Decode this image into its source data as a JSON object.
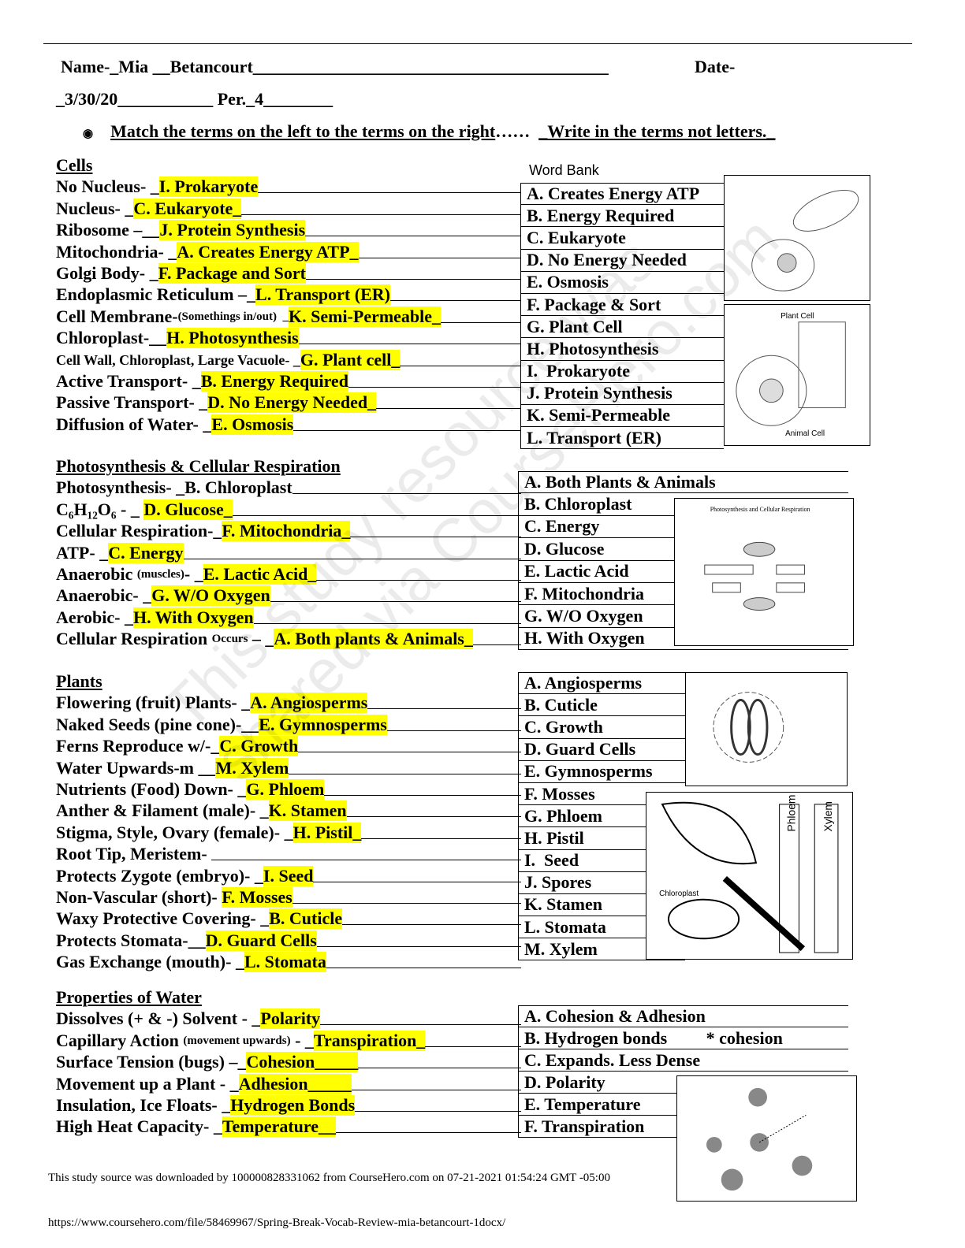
{
  "header": {
    "name": "Name-_Mia __Betancourt_________________________________________",
    "date_label": "Date-",
    "date": "_3/30/20___________ Per._4________"
  },
  "instructions": {
    "bullet": "◉",
    "part1": "Match the terms on the left to the terms on the right",
    "dots": "……  ",
    "part2": "_Write in the terms not letters._"
  },
  "sections": [
    {
      "title": "Cells ",
      "rows": [
        {
          "label": "No Nucleus- _",
          "answer": "I. Prokaryote"
        },
        {
          "label": "Nucleus- _",
          "answer": "C. Eukaryote_"
        },
        {
          "label": "Ribosome –__",
          "answer": "J. Protein Synthesis"
        },
        {
          "label": "Mitochondria- _",
          "answer": "A. Creates Energy ATP_"
        },
        {
          "label": "Golgi Body- _",
          "answer": "F. Package and Sort"
        },
        {
          "label": "Endoplasmic Reticulum –_",
          "answer": "L. Transport (ER)"
        },
        {
          "label": "Cell Membrane-",
          "small": "(Somethings in/out)  _",
          "answer": "K. Semi-Permeable_"
        },
        {
          "label": "Chloroplast-__",
          "answer": "H. Photosynthesis"
        },
        {
          "label": "",
          "small_large": "Cell Wall, Chloroplast, Large Vacuole- _",
          "answer": "G. Plant cell_"
        },
        {
          "label": "Active Transport- _",
          "answer": "B. Energy Required"
        },
        {
          "label": "Passive Transport- _",
          "answer": "D. No Energy Needed_"
        },
        {
          "label": "Diffusion of Water- _",
          "answer": "E. Osmosis"
        }
      ]
    },
    {
      "title": "Photosynthesis & Cellular Respiration",
      "rows": [
        {
          "label": "Photosynthesis- _B. Chloroplast",
          "answer": ""
        },
        {
          "label": "C₆H₁₂O₆ - _ ",
          "answer": "D. Glucose_"
        },
        {
          "label": "Cellular Respiration-_",
          "answer": "F. Mitochondria_"
        },
        {
          "label": "ATP- _",
          "answer": "C. Energy"
        },
        {
          "label": "Anaerobic ",
          "small": "(muscles)",
          "label2": "- _",
          "answer": "E. Lactic Acid_"
        },
        {
          "label": "Anaerobic- _",
          "answer": "G. W/O Oxygen"
        },
        {
          "label": "Aerobic- _",
          "answer": "H. With Oxygen"
        },
        {
          "label": "Cellular Respiration ",
          "small": "Occurs",
          "label2": " – _",
          "answer": "A. Both plants & Animals_"
        }
      ]
    },
    {
      "title": "Plants",
      "rows": [
        {
          "label": "Flowering (fruit) Plants- _",
          "answer": "A. Angiosperms"
        },
        {
          "label": "Naked Seeds (pine cone)-__",
          "answer": "E. Gymnosperms"
        },
        {
          "label": "Ferns Reproduce w/-_",
          "answer": "C. Growth"
        },
        {
          "label": "Water Upwards-m __",
          "answer": "M. Xylem"
        },
        {
          "label": "Nutrients (Food) Down- _",
          "answer": "G. Phloem"
        },
        {
          "label": "Anther & Filament (male)- _",
          "answer": "K. Stamen"
        },
        {
          "label": "Stigma, Style, Ovary (female)- _",
          "answer": "H. Pistil_"
        },
        {
          "label": "Root Tip, Meristem- ",
          "answer": ""
        },
        {
          "label": "Protects Zygote (embryo)- _",
          "answer": "I. Seed"
        },
        {
          "label": "Non-Vascular (short)- ",
          "answer": "F. Mosses"
        },
        {
          "label": "Waxy Protective Covering- _",
          "answer": "B. Cuticle"
        },
        {
          "label": "Protects Stomata-__",
          "answer": "D. Guard Cells"
        },
        {
          "label": "Gas Exchange (mouth)- _",
          "answer": "L. Stomata"
        }
      ]
    },
    {
      "title": "Properties of Water",
      "rows": [
        {
          "label": "Dissolves (+ & -) Solvent - _",
          "answer": "Polarity"
        },
        {
          "label": "Capillary Action ",
          "small": "(movement upwards)",
          "label2": " - _",
          "answer": "Transpiration_"
        },
        {
          "label": "Surface Tension (bugs) –_",
          "answer": "Cohesion_____"
        },
        {
          "label": "Movement up a Plant - _",
          "answer": "Adhesion_____"
        },
        {
          "label": "Insulation, Ice Floats- _",
          "answer": "Hydrogen Bonds"
        },
        {
          "label": "High Heat Capacity- _",
          "answer": "Temperature__"
        }
      ]
    }
  ],
  "word_bank_title": "Word Bank",
  "banks": [
    [
      "A. Creates Energy ATP",
      "B. Energy Required",
      "C. Eukaryote",
      "D. No Energy Needed",
      "E. Osmosis",
      "F. Package & Sort",
      "G. Plant Cell",
      "H. Photosynthesis",
      "I.  Prokaryote",
      "J. Protein Synthesis",
      "K. Semi-Permeable",
      "L. Transport (ER)"
    ],
    [
      "A. Both Plants & Animals",
      "B. Chloroplast",
      "C. Energy",
      "D. Glucose",
      "E. Lactic Acid",
      "F. Mitochondria",
      "G. W/O Oxygen",
      "H. With Oxygen"
    ],
    [
      "A. Angiosperms",
      "B. Cuticle",
      "C. Growth",
      "D. Guard Cells",
      "E. Gymnosperms",
      "F. Mosses",
      "G. Phloem",
      "H. Pistil",
      "I.  Seed",
      "J. Spores",
      "K. Stamen",
      "L. Stomata",
      "M. Xylem"
    ],
    [
      "A. Cohesion & Adhesion",
      "B. Hydrogen bonds         * cohesion",
      "C. Expands. Less Dense",
      "D. Polarity",
      "E. Temperature",
      "F. Transpiration"
    ]
  ],
  "images": {
    "plant_cell": "Plant Cell",
    "animal_cell": "Animal Cell",
    "photo_title": "Photosynthesis and Cellular Respiration",
    "chloroplast": "Chloroplast",
    "phloem": "Phloem",
    "xylem": "Xylem"
  },
  "footer": {
    "source": "This study source was downloaded by 100000828331062 from CourseHero.com on 07-21-2021 01:54:24 GMT -05:00",
    "url": "https://www.coursehero.com/file/58469967/Spring-Break-Vocab-Review-mia-betancourt-1docx/"
  },
  "watermark": "This study resource was\nshared via CourseHero.com"
}
